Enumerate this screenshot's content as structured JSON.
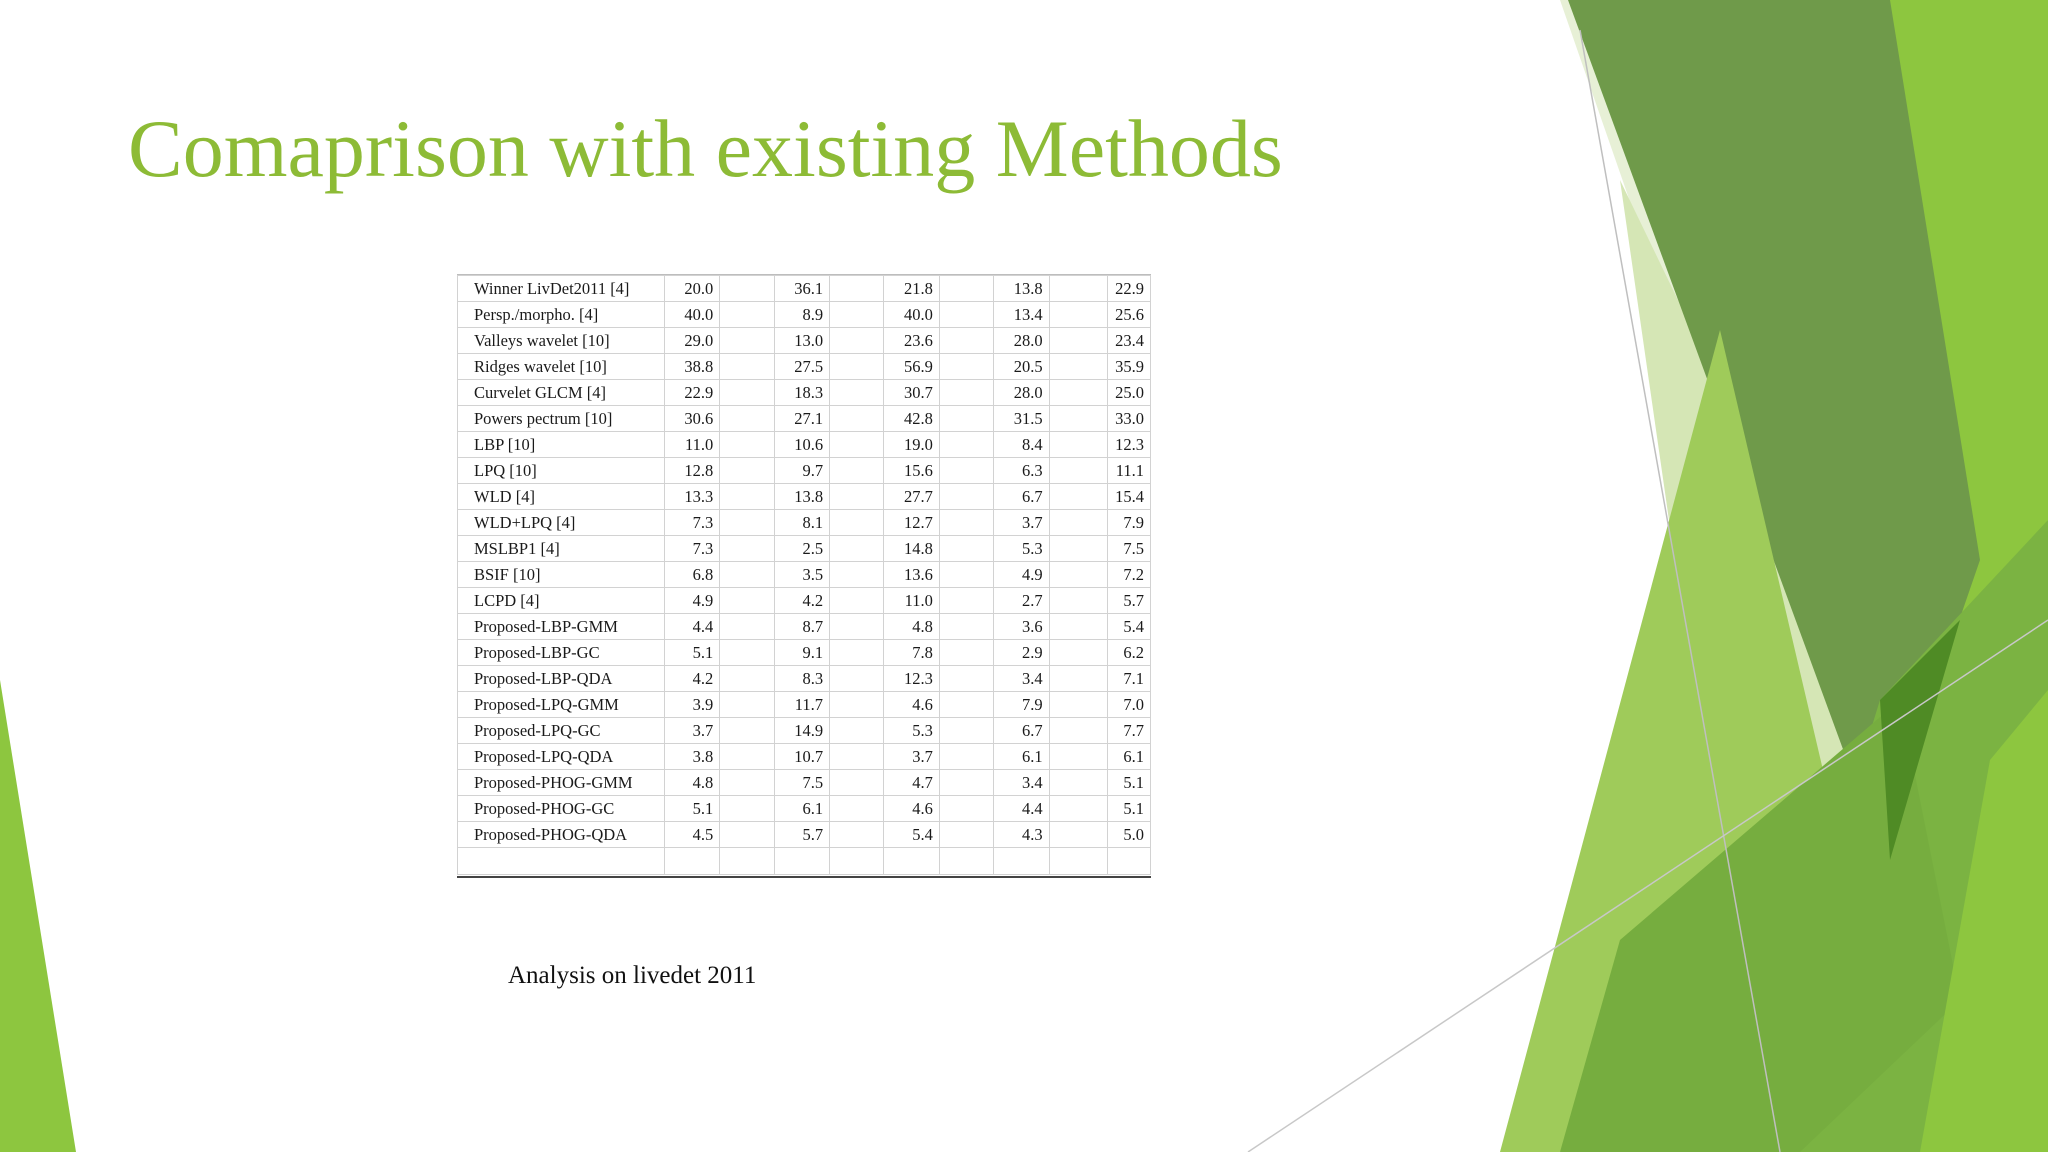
{
  "slide": {
    "title": "Comaprison with existing Methods",
    "caption": "Analysis on livedet 2011"
  },
  "table": {
    "rows": [
      {
        "method": "Winner LivDet2011  [4]",
        "values": [
          "20.0",
          "36.1",
          "21.8",
          "13.8",
          "22.9"
        ]
      },
      {
        "method": "Persp./morpho. [4]",
        "values": [
          "40.0",
          "8.9",
          "40.0",
          "13.4",
          "25.6"
        ]
      },
      {
        "method": "Valleys  wavelet [10]",
        "values": [
          "29.0",
          "13.0",
          "23.6",
          "28.0",
          "23.4"
        ]
      },
      {
        "method": "Ridges wavelet [10]",
        "values": [
          "38.8",
          "27.5",
          "56.9",
          "20.5",
          "35.9"
        ]
      },
      {
        "method": "Curvelet GLCM [4]",
        "values": [
          "22.9",
          "18.3",
          "30.7",
          "28.0",
          "25.0"
        ]
      },
      {
        "method": "Powers pectrum [10]",
        "values": [
          "30.6",
          "27.1",
          "42.8",
          "31.5",
          "33.0"
        ]
      },
      {
        "method": "LBP  [10]",
        "values": [
          "11.0",
          "10.6",
          "19.0",
          "8.4",
          "12.3"
        ]
      },
      {
        "method": "LPQ [10]",
        "values": [
          "12.8",
          "9.7",
          "15.6",
          "6.3",
          "11.1"
        ]
      },
      {
        "method": "WLD [4]",
        "values": [
          "13.3",
          "13.8",
          "27.7",
          "6.7",
          "15.4"
        ]
      },
      {
        "method": "WLD+LPQ  [4]",
        "values": [
          "7.3",
          "8.1",
          "12.7",
          "3.7",
          "7.9"
        ]
      },
      {
        "method": "MSLBP1  [4]",
        "values": [
          "7.3",
          "2.5",
          "14.8",
          "5.3",
          "7.5"
        ]
      },
      {
        "method": "BSIF [10]",
        "values": [
          "6.8",
          "3.5",
          "13.6",
          "4.9",
          "7.2"
        ]
      },
      {
        "method": "LCPD [4]",
        "values": [
          "4.9",
          "4.2",
          "11.0",
          "2.7",
          "5.7"
        ]
      },
      {
        "method": "Proposed-LBP-GMM",
        "values": [
          "4.4",
          "8.7",
          "4.8",
          "3.6",
          "5.4"
        ]
      },
      {
        "method": "Proposed-LBP-GC",
        "values": [
          "5.1",
          "9.1",
          "7.8",
          "2.9",
          "6.2"
        ]
      },
      {
        "method": "Proposed-LBP-QDA",
        "values": [
          "4.2",
          "8.3",
          "12.3",
          "3.4",
          "7.1"
        ]
      },
      {
        "method": "Proposed-LPQ-GMM",
        "values": [
          "3.9",
          "11.7",
          "4.6",
          "7.9",
          "7.0"
        ]
      },
      {
        "method": "Proposed-LPQ-GC",
        "values": [
          "3.7",
          "14.9",
          "5.3",
          "6.7",
          "7.7"
        ]
      },
      {
        "method": "Proposed-LPQ-QDA",
        "values": [
          "3.8",
          "10.7",
          "3.7",
          "6.1",
          "6.1"
        ]
      },
      {
        "method": "Proposed-PHOG-GMM",
        "values": [
          "4.8",
          "7.5",
          "4.7",
          "3.4",
          "5.1"
        ]
      },
      {
        "method": "Proposed-PHOG-GC",
        "values": [
          "5.1",
          "6.1",
          "4.6",
          "4.4",
          "5.1"
        ]
      },
      {
        "method": "Proposed-PHOG-QDA",
        "values": [
          "4.5",
          "5.7",
          "5.4",
          "4.3",
          "5.0"
        ]
      }
    ]
  },
  "theme": {
    "title_color": "#8dbb36",
    "accent_light": "#d9e8bf",
    "accent_mid": "#8dc63f",
    "accent_dark": "#6a9a3c"
  }
}
